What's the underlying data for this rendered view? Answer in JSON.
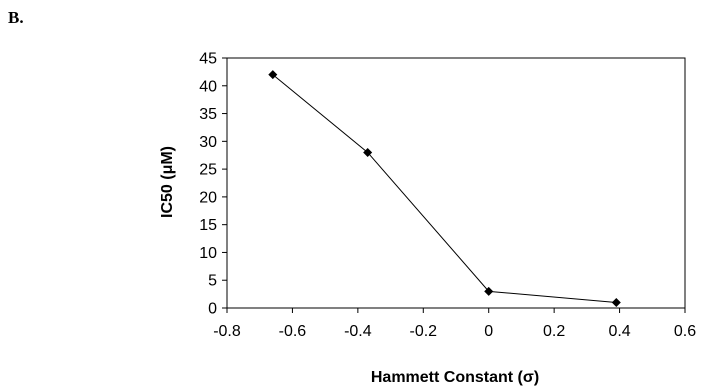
{
  "panel_label": "B.",
  "chart_data": {
    "type": "scatter",
    "title": "",
    "xlabel": "Hammett Constant (σ)",
    "ylabel": "IC50 (μM)",
    "xlim": [
      -0.8,
      0.6
    ],
    "ylim": [
      0,
      45
    ],
    "x_ticks": [
      "-0.8",
      "-0.6",
      "-0.4",
      "-0.2",
      "0",
      "0.2",
      "0.4",
      "0.6"
    ],
    "y_ticks": [
      "0",
      "5",
      "10",
      "15",
      "20",
      "25",
      "30",
      "35",
      "40",
      "45"
    ],
    "grid": false,
    "legend": "none",
    "series": [
      {
        "marker": "diamond",
        "line": true,
        "color": "#000000",
        "points": [
          {
            "x": -0.66,
            "y": 42
          },
          {
            "x": -0.37,
            "y": 28
          },
          {
            "x": 0.0,
            "y": 3
          },
          {
            "x": 0.39,
            "y": 1
          }
        ]
      }
    ]
  }
}
